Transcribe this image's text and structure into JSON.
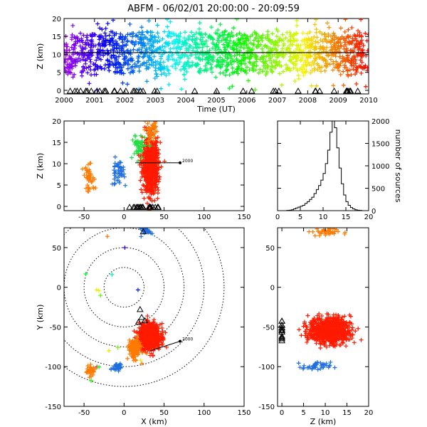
{
  "figure_title": "ABFM - 06/02/01 20:00:00 - 20:09:59",
  "colors": {
    "axis": "#000000",
    "background": "#ffffff",
    "overlay": "#000000"
  },
  "chart_data": [
    {
      "id": "time-height",
      "type": "scatter",
      "title": "ABFM - 06/02/01 20:00:00 - 20:09:59",
      "xlabel": "Time (UT)",
      "ylabel": "Z (km)",
      "xlim": [
        2000,
        2010
      ],
      "ylim": [
        -1,
        20
      ],
      "x_ticks": [
        2000,
        2001,
        2002,
        2003,
        2004,
        2005,
        2006,
        2007,
        2008,
        2009,
        2010
      ],
      "y_ticks": [
        0,
        5,
        10,
        15,
        20
      ],
      "color_scale": "rainbow by time",
      "dense_band_z": [
        5,
        16
      ],
      "outlier_z": [
        0,
        20
      ],
      "reference_line_z": 10.5,
      "station_markers": "open triangles along bottom axis"
    },
    {
      "id": "x-z",
      "type": "scatter",
      "xlabel": "",
      "ylabel": "Z (km)",
      "xlim": [
        -75,
        150
      ],
      "ylim": [
        -1,
        20
      ],
      "x_ticks": [
        -50,
        0,
        50,
        100,
        150
      ],
      "y_ticks": [
        0,
        5,
        10,
        15,
        20
      ],
      "clusters": [
        {
          "color": "red",
          "x_center": 33,
          "x_spread": 9,
          "z_center": 9.5,
          "z_spread": 4.5
        },
        {
          "color": "orange",
          "x_center": 35,
          "z_center": 17.5
        },
        {
          "color": "green",
          "x_center": 18,
          "z_center": 14
        },
        {
          "color": "blue",
          "x_center": -8,
          "z_center": 8
        },
        {
          "color": "orange",
          "x_center": -43,
          "z_center": 6.5
        }
      ],
      "track_line": {
        "from": [
          14,
          10.2
        ],
        "to": [
          70,
          10.2
        ],
        "label_end": "2000"
      }
    },
    {
      "id": "height-histogram",
      "type": "bar",
      "xlabel": "",
      "ylabel": "number of sources",
      "xlim": [
        0,
        20
      ],
      "ylim": [
        0,
        2000
      ],
      "x_ticks": [
        0,
        5,
        10,
        15,
        20
      ],
      "y_ticks": [
        0,
        500,
        1000,
        1500,
        2000
      ],
      "bin_width_km": 0.5,
      "bins_start": [
        0,
        0.5,
        1,
        1.5,
        2,
        2.5,
        3,
        3.5,
        4,
        4.5,
        5,
        5.5,
        6,
        6.5,
        7,
        7.5,
        8,
        8.5,
        9,
        9.5,
        10,
        10.5,
        11,
        11.5,
        12,
        12.5,
        13,
        13.5,
        14,
        14.5,
        15,
        15.5,
        16,
        16.5,
        17,
        17.5,
        18,
        18.5,
        19,
        19.5
      ],
      "counts": [
        0,
        0,
        0,
        0,
        5,
        10,
        20,
        40,
        60,
        80,
        100,
        120,
        160,
        200,
        250,
        300,
        380,
        470,
        560,
        680,
        830,
        1050,
        1350,
        1750,
        2000,
        1850,
        1400,
        950,
        600,
        350,
        200,
        120,
        70,
        40,
        20,
        10,
        5,
        0,
        0,
        0
      ]
    },
    {
      "id": "plan-view",
      "type": "scatter",
      "xlabel": "X (km)",
      "ylabel": "Y (km)",
      "xlim": [
        -75,
        150
      ],
      "ylim": [
        -150,
        75
      ],
      "x_ticks": [
        -50,
        0,
        50,
        100,
        150
      ],
      "y_ticks": [
        -150,
        -100,
        -50,
        0,
        50
      ],
      "range_rings_km": [
        25,
        50,
        75,
        100,
        125
      ],
      "ring_center": [
        0,
        0
      ],
      "clusters": [
        {
          "color": "red",
          "x_center": 32,
          "x_spread": 11,
          "y_center": -62,
          "y_spread": 13
        },
        {
          "color": "orange",
          "x_center": 13,
          "x_spread": 6,
          "y_center": -78,
          "y_spread": 10
        },
        {
          "color": "blue",
          "x_center": 28,
          "y_center": 72
        },
        {
          "color": "blue",
          "x_center": -8,
          "y_center": -100
        },
        {
          "color": "orange",
          "x_center": -42,
          "y_center": -105
        }
      ],
      "track_line": {
        "from": [
          33,
          -80
        ],
        "to": [
          70,
          -68
        ],
        "label_end": "2000"
      }
    },
    {
      "id": "z-y",
      "type": "scatter",
      "xlabel": "Z (km)",
      "ylabel": "",
      "xlim": [
        -1,
        20
      ],
      "ylim": [
        -150,
        75
      ],
      "x_ticks": [
        0,
        5,
        10,
        15,
        20
      ],
      "y_ticks": [
        -150,
        -100,
        -50,
        0,
        50
      ],
      "clusters": [
        {
          "color": "red",
          "z_center": 11,
          "z_spread": 3,
          "y_center": -55,
          "y_spread": 12
        },
        {
          "color": "orange",
          "z_center": 10,
          "y_center": 70
        },
        {
          "color": "blue",
          "z_center": 8,
          "y_center": -100
        }
      ],
      "station_markers": "open triangles along left axis"
    }
  ]
}
